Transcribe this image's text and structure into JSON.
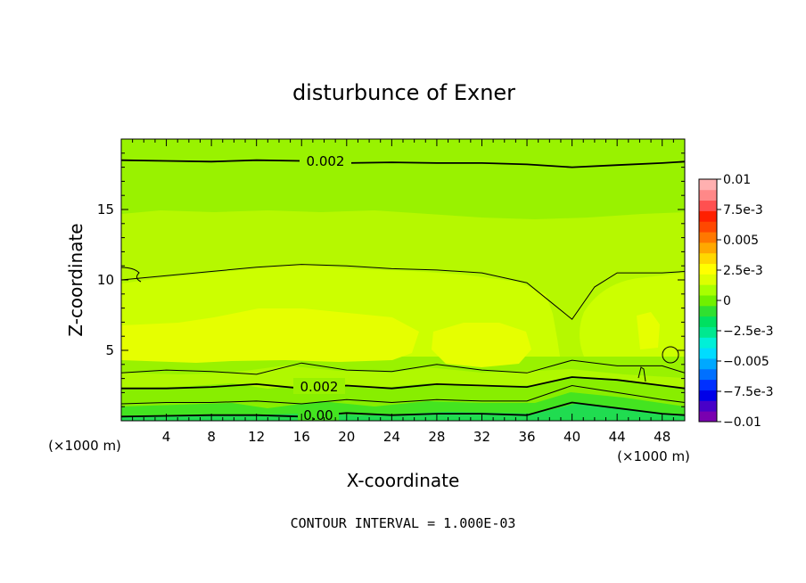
{
  "chart_data": {
    "type": "heatmap",
    "title": "disturbunce of Exner",
    "xlabel": "X-coordinate",
    "ylabel": "Z-coordinate",
    "x_unit": "(×1000 m)",
    "xlim": [
      0,
      50
    ],
    "ylim": [
      0,
      20
    ],
    "x_ticks": [
      "4",
      "8",
      "12",
      "16",
      "20",
      "24",
      "28",
      "32",
      "36",
      "40",
      "44",
      "48"
    ],
    "y_ticks": [
      "5",
      "10",
      "15"
    ],
    "contour_labels": [
      "0.002",
      "0.002",
      "0.00"
    ],
    "footer": "CONTOUR INTERVAL = 1.000E-03",
    "colorbar": {
      "labels": [
        "0.01",
        "7.5e-3",
        "0.005",
        "2.5e-3",
        "0",
        "−2.5e-3",
        "−0.005",
        "−7.5e-3",
        "−0.01"
      ],
      "range": [
        -0.01,
        0.01
      ],
      "colors": [
        "#7a00b0",
        "#4800c8",
        "#0000e8",
        "#0030ff",
        "#0070ff",
        "#00a8ff",
        "#00dcff",
        "#00f0d8",
        "#00e890",
        "#00e060",
        "#30e030",
        "#70f000",
        "#a8ff00",
        "#ddff00",
        "#ffff00",
        "#ffd800",
        "#ffa800",
        "#ff7800",
        "#ff4800",
        "#ff2000",
        "#ff5050",
        "#ff8888",
        "#ffb0b0"
      ]
    },
    "contours": [
      {
        "level": 0.002,
        "x": [
          0,
          4,
          8,
          12,
          16,
          20,
          24,
          28,
          32,
          36,
          40,
          44,
          48,
          50
        ],
        "z": [
          18.5,
          18.45,
          18.4,
          18.5,
          18.45,
          18.3,
          18.35,
          18.3,
          18.3,
          18.2,
          18.0,
          18.15,
          18.3,
          18.4
        ]
      },
      {
        "level": 0.003,
        "x": [
          0,
          4,
          8,
          12,
          16,
          20,
          24,
          28,
          32,
          36,
          38,
          40,
          42,
          44,
          48,
          50
        ],
        "z": [
          10.0,
          10.3,
          10.6,
          10.9,
          11.1,
          11.0,
          10.8,
          10.7,
          10.5,
          9.8,
          8.5,
          7.2,
          9.5,
          10.5,
          10.5,
          10.6
        ]
      },
      {
        "level": 0.003,
        "x": [
          0,
          4,
          8,
          12,
          16,
          20,
          24,
          28,
          32,
          36,
          40,
          44,
          48,
          50
        ],
        "z": [
          3.4,
          3.6,
          3.5,
          3.3,
          4.1,
          3.6,
          3.5,
          4.0,
          3.6,
          3.4,
          4.3,
          3.9,
          3.9,
          3.4
        ]
      },
      {
        "level": 0.002,
        "x": [
          0,
          4,
          8,
          12,
          16,
          20,
          24,
          28,
          32,
          36,
          40,
          44,
          48,
          50
        ],
        "z": [
          2.3,
          2.3,
          2.4,
          2.6,
          2.3,
          2.5,
          2.3,
          2.6,
          2.5,
          2.4,
          3.1,
          2.9,
          2.5,
          2.3
        ]
      },
      {
        "level": 0.001,
        "x": [
          0,
          4,
          8,
          12,
          16,
          20,
          24,
          28,
          32,
          36,
          40,
          44,
          48,
          50
        ],
        "z": [
          1.2,
          1.3,
          1.3,
          1.4,
          1.2,
          1.5,
          1.3,
          1.5,
          1.4,
          1.4,
          2.5,
          2.0,
          1.5,
          1.3
        ]
      },
      {
        "level": 0.0,
        "x": [
          0,
          4,
          8,
          12,
          16,
          20,
          24,
          28,
          32,
          36,
          40,
          44,
          48,
          50
        ],
        "z": [
          0.3,
          0.35,
          0.4,
          0.4,
          0.3,
          0.55,
          0.4,
          0.5,
          0.5,
          0.4,
          1.3,
          0.9,
          0.5,
          0.4
        ]
      }
    ]
  }
}
